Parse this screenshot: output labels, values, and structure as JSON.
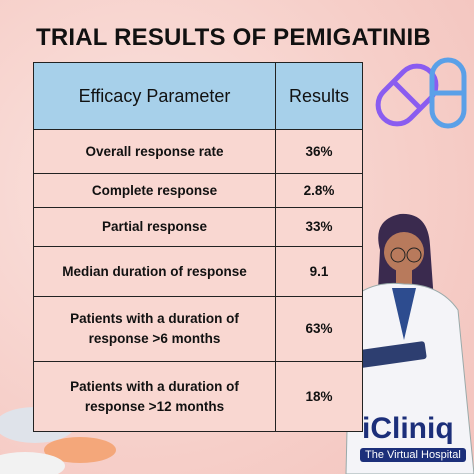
{
  "header": {
    "title": "TRIAL RESULTS OF PEMIGATINIB"
  },
  "table": {
    "headers": [
      "Efficacy Parameter",
      "Results"
    ],
    "rows": [
      [
        "Overall response rate",
        "36%"
      ],
      [
        "Complete response",
        "2.8%"
      ],
      [
        "Partial response",
        "33%"
      ],
      [
        "Median duration of response",
        "9.1"
      ],
      [
        "Patients with a duration of response >6 months",
        "63%"
      ],
      [
        "Patients with a duration of response  >12 months",
        "18%"
      ]
    ]
  },
  "logo": {
    "name": "iCliniq",
    "tagline": "The Virtual Hospital"
  }
}
